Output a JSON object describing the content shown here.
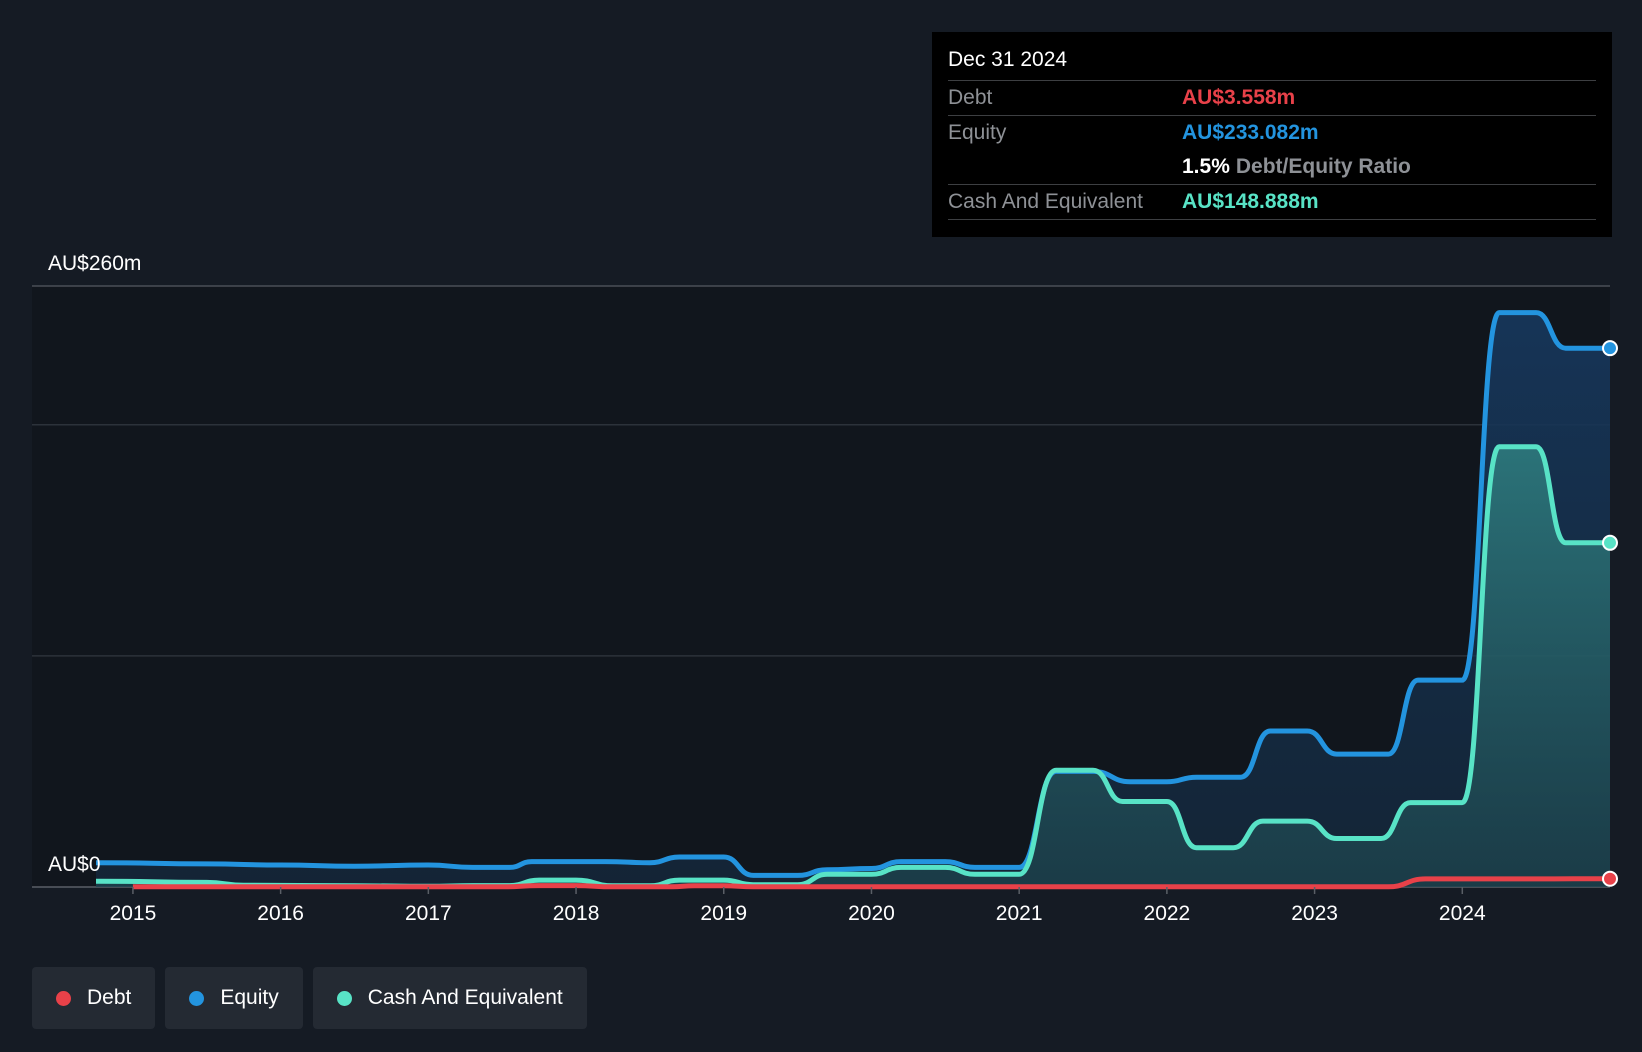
{
  "chart_data": {
    "type": "area",
    "y_axis": {
      "top_label": "AU$260m",
      "bottom_label": "AU$0",
      "ylim": [
        0,
        260
      ],
      "unit": "AU$m"
    },
    "x_ticks": [
      "2015",
      "2016",
      "2017",
      "2018",
      "2019",
      "2020",
      "2021",
      "2022",
      "2023",
      "2024"
    ],
    "xlim": [
      2014.75,
      2025.0
    ],
    "series": [
      {
        "name": "Equity",
        "color": "#2394df",
        "points": [
          [
            2014.75,
            10.5
          ],
          [
            2015.5,
            10.0
          ],
          [
            2016.0,
            9.5
          ],
          [
            2016.5,
            9.0
          ],
          [
            2017.0,
            9.5
          ],
          [
            2017.3,
            8.5
          ],
          [
            2017.55,
            8.5
          ],
          [
            2017.7,
            11.0
          ],
          [
            2018.2,
            11.0
          ],
          [
            2018.5,
            10.5
          ],
          [
            2018.7,
            13.0
          ],
          [
            2019.0,
            13.0
          ],
          [
            2019.2,
            5.0
          ],
          [
            2019.5,
            5.0
          ],
          [
            2019.7,
            7.5
          ],
          [
            2020.0,
            8.0
          ],
          [
            2020.2,
            11.0
          ],
          [
            2020.5,
            11.0
          ],
          [
            2020.7,
            8.5
          ],
          [
            2021.0,
            8.5
          ],
          [
            2021.25,
            50.0
          ],
          [
            2021.5,
            50.0
          ],
          [
            2021.75,
            45.5
          ],
          [
            2022.0,
            45.5
          ],
          [
            2022.2,
            47.5
          ],
          [
            2022.5,
            47.5
          ],
          [
            2022.7,
            67.5
          ],
          [
            2022.95,
            67.5
          ],
          [
            2023.15,
            57.5
          ],
          [
            2023.5,
            57.5
          ],
          [
            2023.7,
            89.5
          ],
          [
            2024.0,
            89.5
          ],
          [
            2024.25,
            248.5
          ],
          [
            2024.5,
            248.5
          ],
          [
            2024.7,
            233.1
          ],
          [
            2025.0,
            233.1
          ]
        ]
      },
      {
        "name": "Cash And Equivalent",
        "color": "#58e3c6",
        "points": [
          [
            2014.75,
            2.5
          ],
          [
            2015.5,
            2.0
          ],
          [
            2015.75,
            0.8
          ],
          [
            2016.5,
            0.5
          ],
          [
            2017.0,
            0.3
          ],
          [
            2017.3,
            0.6
          ],
          [
            2017.55,
            0.6
          ],
          [
            2017.75,
            3.0
          ],
          [
            2018.0,
            3.0
          ],
          [
            2018.25,
            0.5
          ],
          [
            2018.5,
            0.5
          ],
          [
            2018.7,
            3.0
          ],
          [
            2019.0,
            3.0
          ],
          [
            2019.2,
            1.0
          ],
          [
            2019.5,
            1.0
          ],
          [
            2019.7,
            5.5
          ],
          [
            2020.0,
            5.5
          ],
          [
            2020.2,
            8.5
          ],
          [
            2020.5,
            8.5
          ],
          [
            2020.7,
            5.5
          ],
          [
            2021.0,
            5.5
          ],
          [
            2021.25,
            50.5
          ],
          [
            2021.5,
            50.5
          ],
          [
            2021.7,
            37.0
          ],
          [
            2022.0,
            37.0
          ],
          [
            2022.2,
            17.0
          ],
          [
            2022.45,
            17.0
          ],
          [
            2022.65,
            28.5
          ],
          [
            2022.95,
            28.5
          ],
          [
            2023.15,
            21.0
          ],
          [
            2023.45,
            21.0
          ],
          [
            2023.65,
            36.5
          ],
          [
            2024.0,
            36.5
          ],
          [
            2024.25,
            190.5
          ],
          [
            2024.5,
            190.5
          ],
          [
            2024.7,
            148.9
          ],
          [
            2025.0,
            148.9
          ]
        ]
      },
      {
        "name": "Debt",
        "color": "#e84149",
        "points": [
          [
            2015.0,
            0.1
          ],
          [
            2017.5,
            0.1
          ],
          [
            2017.75,
            0.6
          ],
          [
            2018.0,
            0.6
          ],
          [
            2018.25,
            0.1
          ],
          [
            2018.65,
            0.1
          ],
          [
            2018.8,
            0.5
          ],
          [
            2019.0,
            0.5
          ],
          [
            2019.2,
            0.1
          ],
          [
            2023.5,
            0.1
          ],
          [
            2023.75,
            3.5
          ],
          [
            2024.5,
            3.5
          ],
          [
            2024.75,
            3.558
          ],
          [
            2025.0,
            3.558
          ]
        ]
      }
    ],
    "grid": true,
    "legend_position": "bottom-left"
  },
  "tooltip": {
    "date": "Dec 31 2024",
    "debt_label": "Debt",
    "debt_value": "AU$3.558m",
    "equity_label": "Equity",
    "equity_value": "AU$233.082m",
    "ratio_value": "1.5%",
    "ratio_label": "Debt/Equity Ratio",
    "cash_label": "Cash And Equivalent",
    "cash_value": "AU$148.888m",
    "colors": {
      "debt": "#e84149",
      "equity": "#2394df",
      "cash": "#58e3c6"
    }
  },
  "legend": [
    {
      "label": "Debt",
      "color": "#e84149"
    },
    {
      "label": "Equity",
      "color": "#2394df"
    },
    {
      "label": "Cash And Equivalent",
      "color": "#58e3c6"
    }
  ]
}
